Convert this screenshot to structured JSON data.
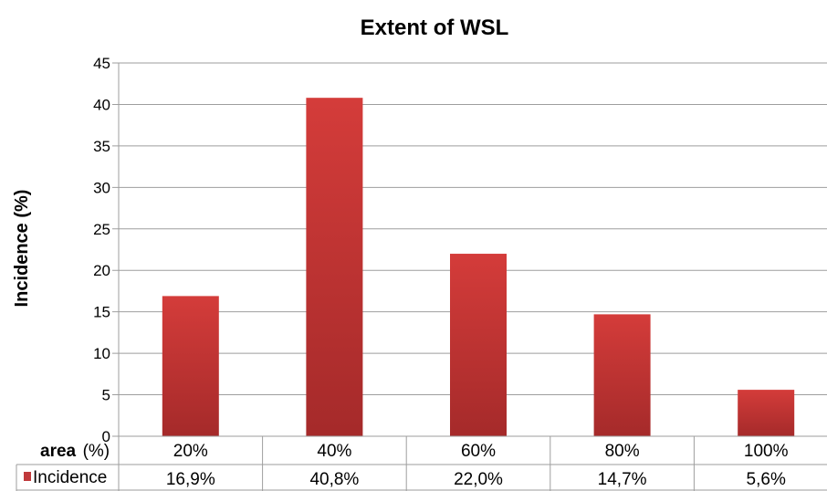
{
  "chart_data": {
    "type": "bar",
    "title": "Extent of WSL",
    "ylabel": "Incidence (%)",
    "xlabel_part1": "area",
    "xlabel_part2": "(%)",
    "categories": [
      "20%",
      "40%",
      "60%",
      "80%",
      "100%"
    ],
    "series": [
      {
        "name": "Incidence",
        "values": [
          16.9,
          40.8,
          22.0,
          14.7,
          5.6
        ],
        "labels": [
          "16,9%",
          "40,8%",
          "22,0%",
          "14,7%",
          "5,6%"
        ]
      }
    ],
    "ylim": [
      0,
      45
    ],
    "yticks": [
      "0",
      "5",
      "10",
      "15",
      "20",
      "25",
      "30",
      "35",
      "40",
      "45"
    ],
    "grid": true,
    "legend": "data-table",
    "colors": {
      "bar_top": "#d43c3a",
      "bar_bottom": "#a52a2a",
      "grid": "#9e9e9e",
      "legend_key": "#c0393b"
    }
  }
}
